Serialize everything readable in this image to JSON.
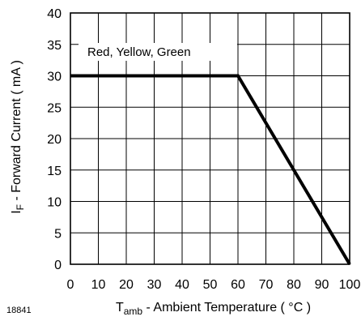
{
  "chart_data": {
    "type": "line",
    "title": "",
    "xlabel_main": "T",
    "xlabel_sub": "amb",
    "xlabel_rest": " - Ambient Temperature ( °C )",
    "ylabel_main": "I",
    "ylabel_sub": "F",
    "ylabel_rest": " - Forward Current ( mA )",
    "xlim": [
      0,
      100
    ],
    "ylim": [
      0,
      40
    ],
    "xticks": [
      0,
      10,
      20,
      30,
      40,
      50,
      60,
      70,
      80,
      90,
      100
    ],
    "yticks": [
      0,
      5,
      10,
      15,
      20,
      25,
      30,
      35,
      40
    ],
    "grid": true,
    "series": [
      {
        "name": "Red, Yellow, Green",
        "x": [
          0,
          60,
          100
        ],
        "y": [
          30,
          30,
          0
        ],
        "color": "#000000"
      }
    ],
    "figure_id": "18841"
  }
}
